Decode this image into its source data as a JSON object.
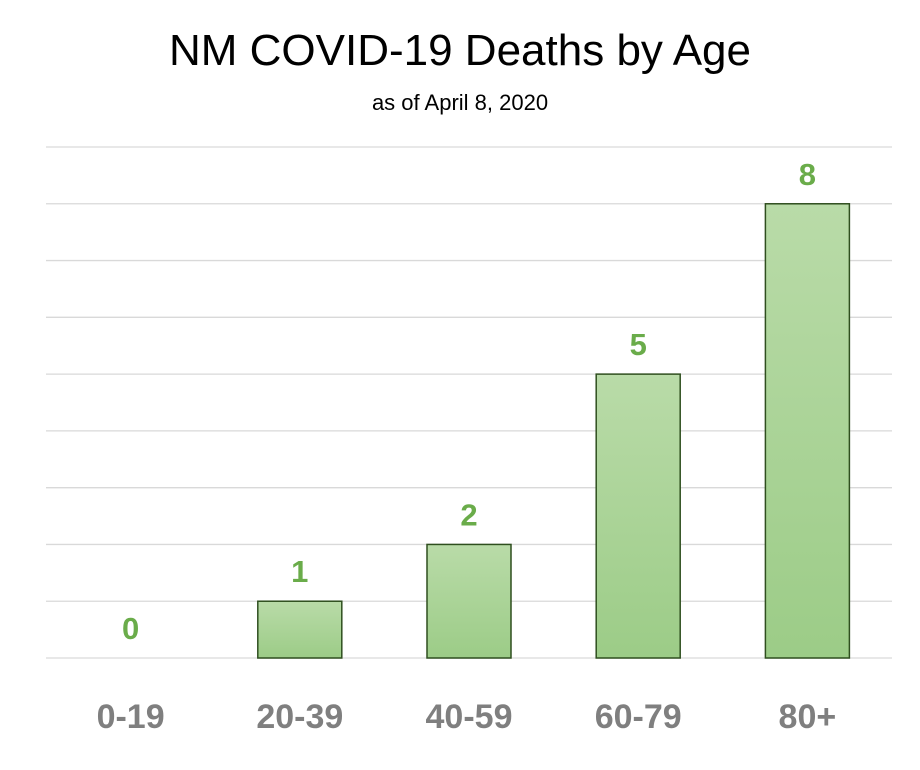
{
  "chart_data": {
    "type": "bar",
    "title": "NM COVID-19 Deaths by Age",
    "subtitle": "as of April 8, 2020",
    "categories": [
      "0-19",
      "20-39",
      "40-59",
      "60-79",
      "80+"
    ],
    "values": [
      0,
      1,
      2,
      5,
      8
    ],
    "data_labels": [
      "0",
      "1",
      "2",
      "5",
      "8"
    ],
    "xlabel": "",
    "ylabel": "",
    "ylim": [
      0,
      9
    ],
    "grid": true,
    "legend": "none",
    "colors": {
      "bar_top": "#b9dba8",
      "bar_bottom": "#9ccc87",
      "bar_stroke": "#2f4f1f",
      "data_label": "#6aac4a",
      "tick_label": "#7f7f7f",
      "gridline": "#d9d9d9"
    }
  }
}
